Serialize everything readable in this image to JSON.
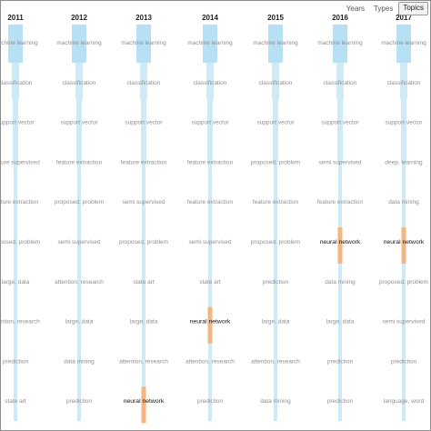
{
  "toolbar": {
    "buttons": [
      {
        "label": "Years",
        "active": false
      },
      {
        "label": "Types",
        "active": false
      },
      {
        "label": "Topics",
        "active": true
      }
    ]
  },
  "colors": {
    "stream": "#cfeaf7",
    "stream_dark": "#b8e0f4",
    "highlight": "#f2b682",
    "highlight_text": "#111111",
    "label": "#8f8f8f"
  },
  "timeline": {
    "years": [
      "2011",
      "2012",
      "2013",
      "2014",
      "2015",
      "2016",
      "2017"
    ],
    "columns": [
      [
        "machine learning",
        "classification",
        "support vector",
        "feature supervised",
        "feature extraction",
        "proposed, problem",
        "large, data",
        "attention, research",
        "prediction",
        "state art"
      ],
      [
        "machine learning",
        "classification",
        "support vector",
        "feature extraction",
        "proposed, problem",
        "semi supervised",
        "attention, research",
        "large, data",
        "data mining",
        "prediction"
      ],
      [
        "machine learning",
        "classification",
        "support vector",
        "feature extraction",
        "semi supervised",
        "proposed, problem",
        "state art",
        "large, data",
        "attention, research",
        "neural network"
      ],
      [
        "machine learning",
        "classification",
        "support vector",
        "feature extraction",
        "feature extraction",
        "semi supervised",
        "state art",
        "neural network",
        "attention, research",
        "prediction"
      ],
      [
        "machine learning",
        "classification",
        "support vector",
        "proposed, problem",
        "feature extraction",
        "proposed, problem",
        "prediction",
        "large, data",
        "attention, research",
        "data mining"
      ],
      [
        "machine learning",
        "classification",
        "support vector",
        "semi supervised",
        "feature extraction",
        "neural network",
        "data mining",
        "large, data",
        "prediction",
        "prediction"
      ],
      [
        "machine learning",
        "classification",
        "support vector",
        "deep, learning",
        "data mining",
        "neural network",
        "proposed, problem",
        "semi supervised",
        "prediction",
        "language, word"
      ]
    ],
    "highlight_topic": "neural network"
  }
}
